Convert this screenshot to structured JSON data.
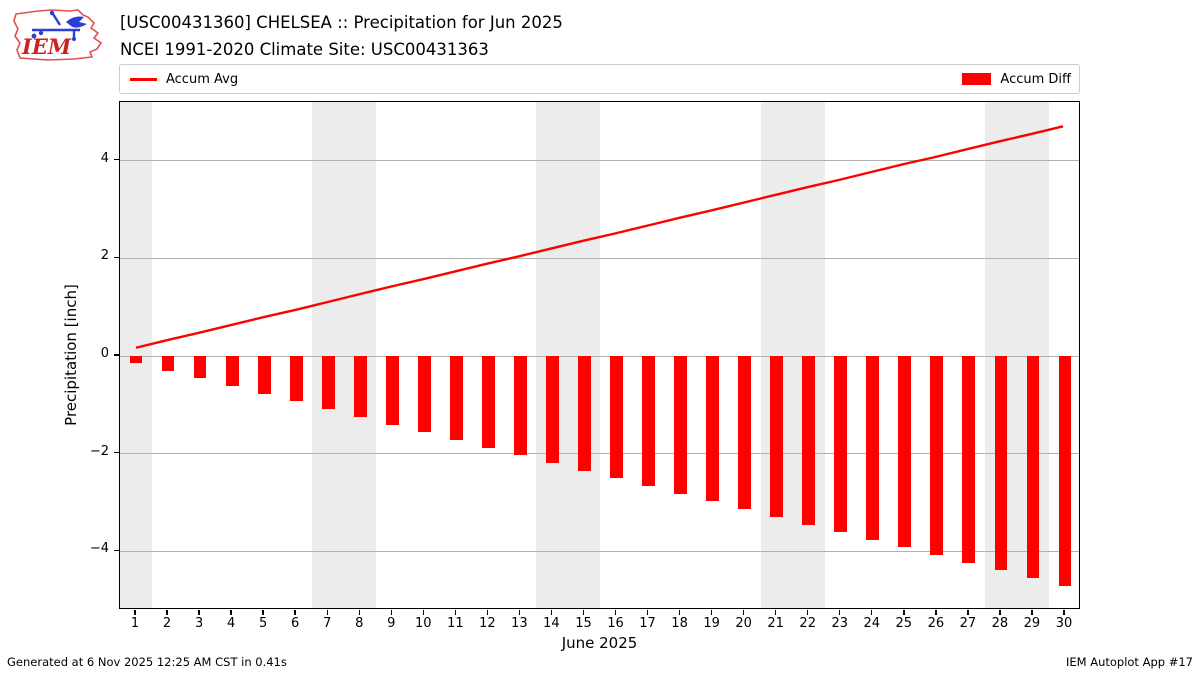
{
  "header": {
    "title_line1": "[USC00431360] CHELSEA :: Precipitation for Jun 2025",
    "title_line2": "NCEI 1991-2020 Climate Site: USC00431363",
    "logo_text": "IEM"
  },
  "legend": {
    "avg_label": "Accum Avg",
    "diff_label": "Accum Diff"
  },
  "footer": {
    "generated": "Generated at 6 Nov 2025 12:25 AM CST in 0.41s",
    "app": "IEM Autoplot App #17"
  },
  "colors": {
    "accent_red": "#ff0000",
    "grid": "#b0b0b0",
    "weekend_band": "#ececec",
    "spine": "#000000",
    "legend_border": "#cccccc",
    "logo_outline": "#e05050",
    "logo_vane": "#2a3fd4",
    "logo_text": "#cc2222"
  },
  "chart_data": {
    "type": "bar",
    "title": "[USC00431360] CHELSEA :: Precipitation for Jun 2025",
    "subtitle": "NCEI 1991-2020 Climate Site: USC00431363",
    "xlabel": "June 2025",
    "ylabel": "Precipitation [inch]",
    "x": [
      1,
      2,
      3,
      4,
      5,
      6,
      7,
      8,
      9,
      10,
      11,
      12,
      13,
      14,
      15,
      16,
      17,
      18,
      19,
      20,
      21,
      22,
      23,
      24,
      25,
      26,
      27,
      28,
      29,
      30
    ],
    "series": [
      {
        "name": "Accum Avg",
        "type": "line",
        "color": "#ff0000",
        "values": [
          0.15,
          0.31,
          0.46,
          0.62,
          0.78,
          0.93,
          1.09,
          1.25,
          1.41,
          1.56,
          1.72,
          1.88,
          2.03,
          2.19,
          2.35,
          2.5,
          2.66,
          2.82,
          2.97,
          3.13,
          3.29,
          3.45,
          3.6,
          3.76,
          3.92,
          4.07,
          4.23,
          4.39,
          4.54,
          4.7
        ]
      },
      {
        "name": "Accum Diff",
        "type": "bar",
        "color": "#ff0000",
        "values": [
          -0.15,
          -0.31,
          -0.46,
          -0.62,
          -0.78,
          -0.93,
          -1.09,
          -1.25,
          -1.41,
          -1.56,
          -1.72,
          -1.88,
          -2.03,
          -2.19,
          -2.35,
          -2.5,
          -2.66,
          -2.82,
          -2.97,
          -3.13,
          -3.29,
          -3.45,
          -3.6,
          -3.76,
          -3.92,
          -4.07,
          -4.23,
          -4.39,
          -4.54,
          -4.7
        ]
      }
    ],
    "xlim": [
      0.5,
      30.5
    ],
    "ylim": [
      -5.2,
      5.2
    ],
    "yticks": [
      -4,
      -2,
      0,
      2,
      4
    ],
    "bar_width_days": 0.4,
    "weekend_bands": [
      [
        0.5,
        1.5
      ],
      [
        6.5,
        8.5
      ],
      [
        13.5,
        15.5
      ],
      [
        20.5,
        22.5
      ],
      [
        27.5,
        29.5
      ]
    ],
    "grid": true,
    "legend_position": "top"
  }
}
